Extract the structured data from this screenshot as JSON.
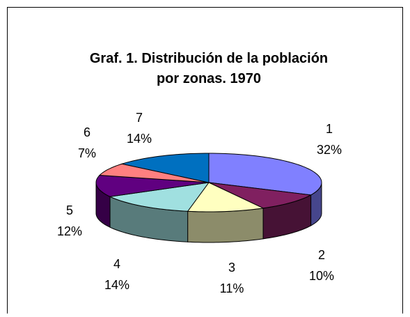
{
  "chart_data": {
    "type": "pie3d",
    "title": "Graf. 1. Distribución de la población por zonas. 1970",
    "categories": [
      "1",
      "2",
      "3",
      "4",
      "5",
      "6",
      "7"
    ],
    "values": [
      32,
      10,
      11,
      14,
      12,
      7,
      14
    ],
    "value_labels": [
      "32%",
      "10%",
      "11%",
      "14%",
      "12%",
      "7%",
      "14%"
    ],
    "colors": [
      "#8080ff",
      "#802060",
      "#ffffc0",
      "#a0e0e0",
      "#600080",
      "#ff8080",
      "#0070c0"
    ]
  }
}
